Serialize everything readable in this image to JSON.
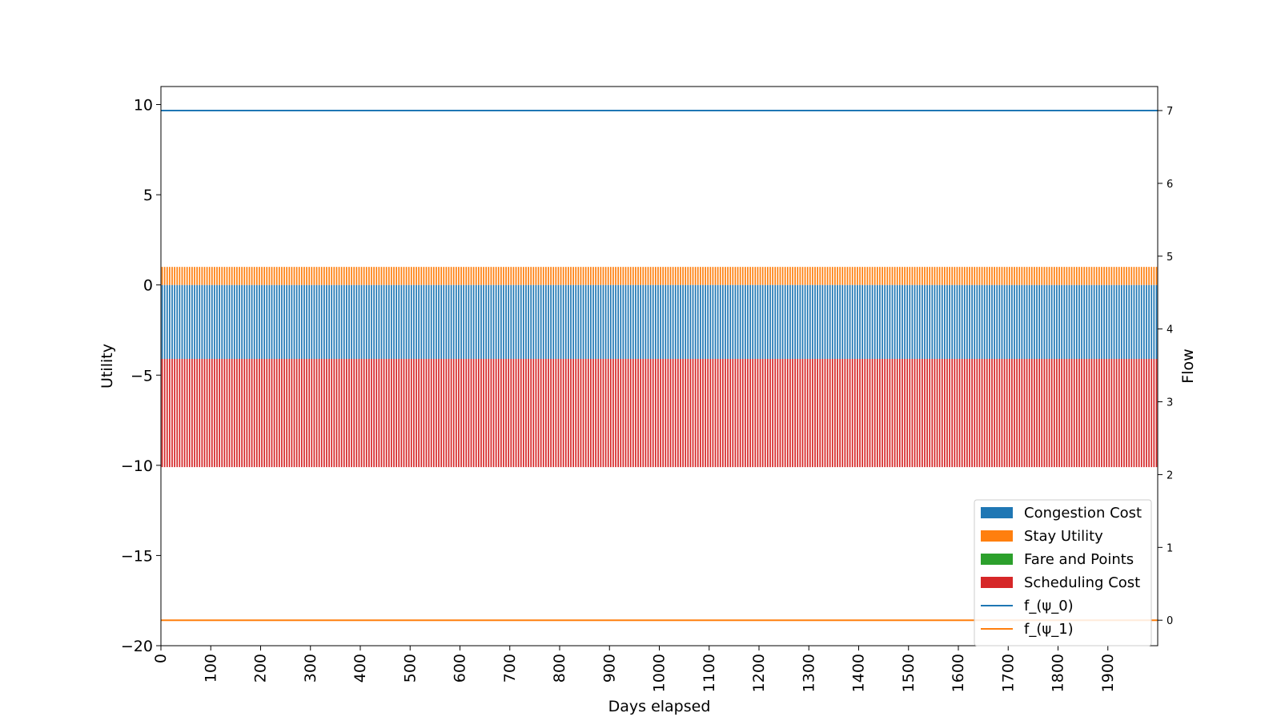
{
  "chart_data": {
    "type": "bar",
    "xlabel": "Days elapsed",
    "ylabel": "Utility",
    "y2label": "Flow",
    "xlim": [
      0,
      2000
    ],
    "ylim": [
      -20,
      11
    ],
    "y2lim": [
      -0.35,
      7.33
    ],
    "xticks": [
      0,
      100,
      200,
      300,
      400,
      500,
      600,
      700,
      800,
      900,
      1000,
      1100,
      1200,
      1300,
      1400,
      1500,
      1600,
      1700,
      1800,
      1900
    ],
    "yticks": [
      -20,
      -15,
      -10,
      -5,
      0,
      5,
      10
    ],
    "y2ticks": [
      0,
      1,
      2,
      3,
      4,
      5,
      6,
      7
    ],
    "bar_days": [
      0,
      2000
    ],
    "bar_spacing_days": 5,
    "series": [
      {
        "name": "Congestion Cost",
        "kind": "bar",
        "color": "#1f77b4",
        "value": -4.1,
        "stack_base": 0
      },
      {
        "name": "Stay Utility",
        "kind": "bar",
        "color": "#ff7f0e",
        "value": 1.0,
        "stack_base": 0
      },
      {
        "name": "Fare and Points",
        "kind": "bar",
        "color": "#2ca02c",
        "value": 0,
        "stack_base": 0
      },
      {
        "name": "Scheduling Cost",
        "kind": "bar",
        "color": "#d62728",
        "value": -6.0,
        "stack_base": -4.1
      },
      {
        "name": "f_(ψ_0)",
        "kind": "line",
        "color": "#1f77b4",
        "axis": "right",
        "value": 7
      },
      {
        "name": "f_(ψ_1)",
        "kind": "line",
        "color": "#ff7f0e",
        "axis": "right",
        "value": 0
      }
    ],
    "grid": false,
    "legend_position": "lower-right"
  }
}
